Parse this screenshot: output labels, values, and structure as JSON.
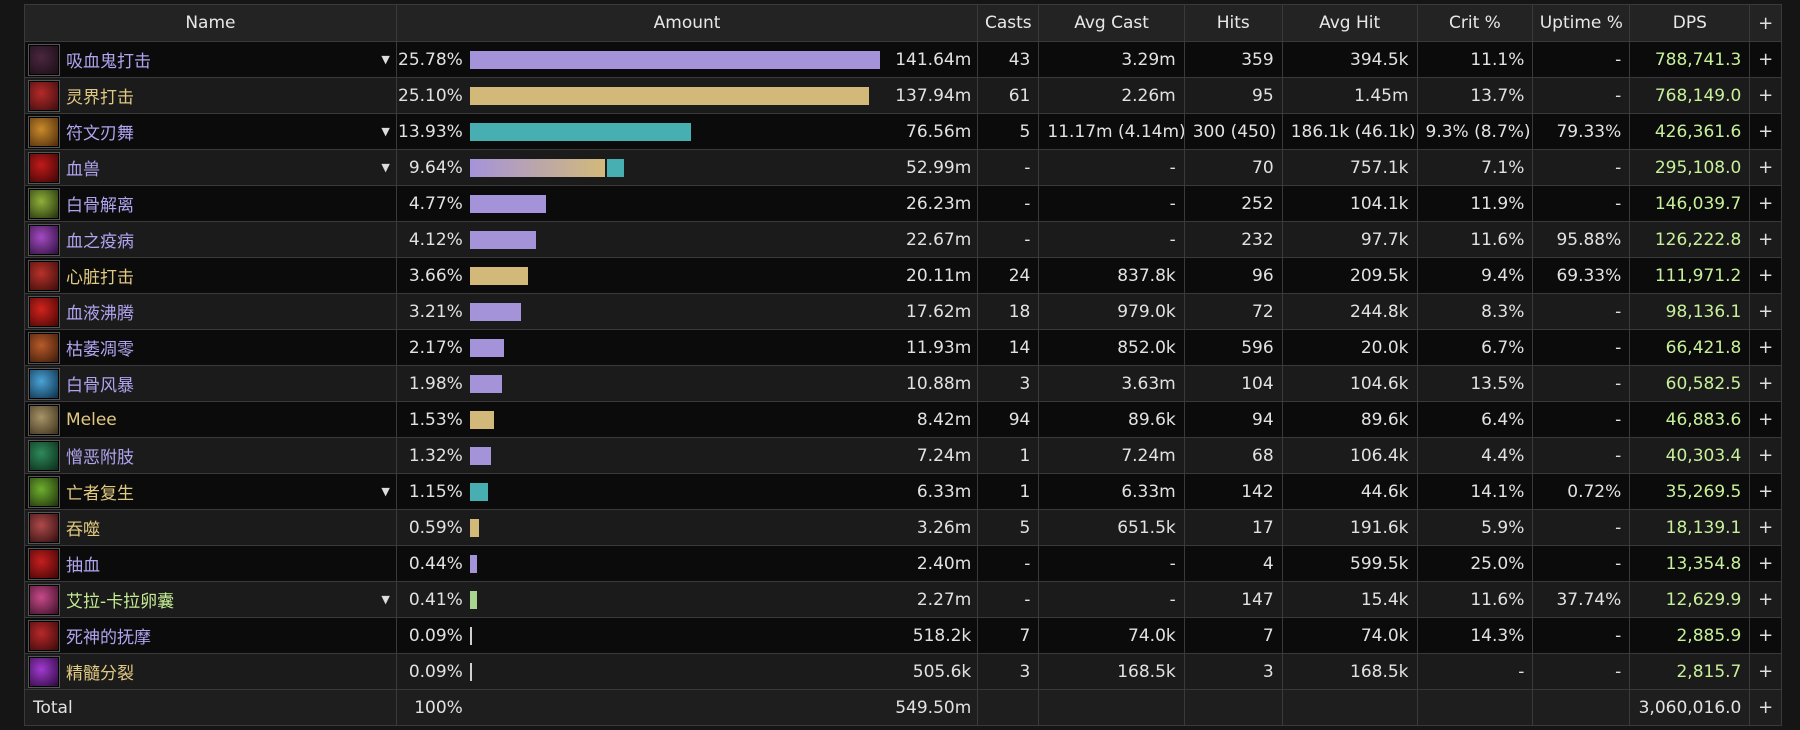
{
  "colors": {
    "purple": "#a593da",
    "gold": "#d2b97a",
    "teal": "#47aeb1",
    "green": "#a9d48f",
    "name_purple": "#b0a4ef",
    "name_gold": "#e1c982",
    "name_green": "#c5ec93",
    "dps_green": "#c7f09a"
  },
  "headers": {
    "name": "Name",
    "amount": "Amount",
    "casts": "Casts",
    "avg_cast": "Avg Cast",
    "hits": "Hits",
    "avg_hit": "Avg Hit",
    "crit": "Crit %",
    "uptime": "Uptime %",
    "dps": "DPS",
    "add": "+"
  },
  "rows": [
    {
      "name": "吸血鬼打击",
      "icon": "vampiric-strike-icon",
      "icon_colors": [
        "#4a2740",
        "#1a0d14"
      ],
      "name_color": "purple",
      "expandable": true,
      "pct": "25.78%",
      "bar": [
        {
          "color": "purple",
          "fraction": 1.0
        }
      ],
      "amount": "141.64m",
      "casts": "43",
      "avg_cast": "3.29m",
      "hits": "359",
      "avg_hit": "394.5k",
      "crit": "11.1%",
      "uptime": "-",
      "dps": "788,741.3"
    },
    {
      "name": "灵界打击",
      "icon": "death-strike-icon",
      "icon_colors": [
        "#b52a2a",
        "#3b0d0d"
      ],
      "name_color": "gold",
      "expandable": false,
      "pct": "25.10%",
      "bar": [
        {
          "color": "gold",
          "fraction": 0.974
        }
      ],
      "amount": "137.94m",
      "casts": "61",
      "avg_cast": "2.26m",
      "hits": "95",
      "avg_hit": "1.45m",
      "crit": "13.7%",
      "uptime": "-",
      "dps": "768,149.0"
    },
    {
      "name": "符文刃舞",
      "icon": "rune-blade-dance-icon",
      "icon_colors": [
        "#c98a2c",
        "#4a2a0a"
      ],
      "name_color": "purple",
      "expandable": true,
      "pct": "13.93%",
      "bar": [
        {
          "color": "teal",
          "fraction": 0.54
        }
      ],
      "amount": "76.56m",
      "casts": "5",
      "avg_cast": "11.17m (4.14m)",
      "hits": "300 (450)",
      "avg_hit": "186.1k (46.1k)",
      "crit": "9.3% (8.7%)",
      "uptime": "79.33%",
      "dps": "426,361.6"
    },
    {
      "name": "血兽",
      "icon": "bloodworm-icon",
      "icon_colors": [
        "#c21a1a",
        "#3a0606"
      ],
      "name_color": "purple",
      "expandable": true,
      "pct": "9.64%",
      "bar": [
        {
          "color": "gradient",
          "fraction": 0.33
        },
        {
          "color": "teal",
          "fraction": 0.041
        }
      ],
      "amount": "52.99m",
      "casts": "-",
      "avg_cast": "-",
      "hits": "70",
      "avg_hit": "757.1k",
      "crit": "7.1%",
      "uptime": "-",
      "dps": "295,108.0"
    },
    {
      "name": "白骨解离",
      "icon": "bone-dissolve-icon",
      "icon_colors": [
        "#8fb03a",
        "#1f2e0b"
      ],
      "name_color": "purple",
      "expandable": false,
      "pct": "4.77%",
      "bar": [
        {
          "color": "purple",
          "fraction": 0.185
        }
      ],
      "amount": "26.23m",
      "casts": "-",
      "avg_cast": "-",
      "hits": "252",
      "avg_hit": "104.1k",
      "crit": "11.9%",
      "uptime": "-",
      "dps": "146,039.7"
    },
    {
      "name": "血之疫病",
      "icon": "blood-plague-icon",
      "icon_colors": [
        "#a34bc2",
        "#2c0f3a"
      ],
      "name_color": "purple",
      "expandable": false,
      "pct": "4.12%",
      "bar": [
        {
          "color": "purple",
          "fraction": 0.16
        }
      ],
      "amount": "22.67m",
      "casts": "-",
      "avg_cast": "-",
      "hits": "232",
      "avg_hit": "97.7k",
      "crit": "11.6%",
      "uptime": "95.88%",
      "dps": "126,222.8"
    },
    {
      "name": "心脏打击",
      "icon": "heart-strike-icon",
      "icon_colors": [
        "#b8322a",
        "#3a0c0a"
      ],
      "name_color": "gold",
      "expandable": false,
      "pct": "3.66%",
      "bar": [
        {
          "color": "gold",
          "fraction": 0.142
        }
      ],
      "amount": "20.11m",
      "casts": "24",
      "avg_cast": "837.8k",
      "hits": "96",
      "avg_hit": "209.5k",
      "crit": "9.4%",
      "uptime": "69.33%",
      "dps": "111,971.2"
    },
    {
      "name": "血液沸腾",
      "icon": "blood-boil-icon",
      "icon_colors": [
        "#d3231c",
        "#420606"
      ],
      "name_color": "purple",
      "expandable": false,
      "pct": "3.21%",
      "bar": [
        {
          "color": "purple",
          "fraction": 0.125
        }
      ],
      "amount": "17.62m",
      "casts": "18",
      "avg_cast": "979.0k",
      "hits": "72",
      "avg_hit": "244.8k",
      "crit": "8.3%",
      "uptime": "-",
      "dps": "98,136.1"
    },
    {
      "name": "枯萎凋零",
      "icon": "death-and-decay-icon",
      "icon_colors": [
        "#b85a2a",
        "#3a1a0a"
      ],
      "name_color": "purple",
      "expandable": false,
      "pct": "2.17%",
      "bar": [
        {
          "color": "purple",
          "fraction": 0.084
        }
      ],
      "amount": "11.93m",
      "casts": "14",
      "avg_cast": "852.0k",
      "hits": "596",
      "avg_hit": "20.0k",
      "crit": "6.7%",
      "uptime": "-",
      "dps": "66,421.8"
    },
    {
      "name": "白骨风暴",
      "icon": "bonestorm-icon",
      "icon_colors": [
        "#4aa3d6",
        "#0d2c44"
      ],
      "name_color": "purple",
      "expandable": false,
      "pct": "1.98%",
      "bar": [
        {
          "color": "purple",
          "fraction": 0.077
        }
      ],
      "amount": "10.88m",
      "casts": "3",
      "avg_cast": "3.63m",
      "hits": "104",
      "avg_hit": "104.6k",
      "crit": "13.5%",
      "uptime": "-",
      "dps": "60,582.5"
    },
    {
      "name": "Melee",
      "icon": "melee-icon",
      "icon_colors": [
        "#a89468",
        "#3a2f1a"
      ],
      "name_color": "gold",
      "expandable": false,
      "pct": "1.53%",
      "bar": [
        {
          "color": "gold",
          "fraction": 0.059
        }
      ],
      "amount": "8.42m",
      "casts": "94",
      "avg_cast": "89.6k",
      "hits": "94",
      "avg_hit": "89.6k",
      "crit": "6.4%",
      "uptime": "-",
      "dps": "46,883.6"
    },
    {
      "name": "憎恶附肢",
      "icon": "abomination-limb-icon",
      "icon_colors": [
        "#2f8a5a",
        "#0a2a1a"
      ],
      "name_color": "purple",
      "expandable": false,
      "pct": "1.32%",
      "bar": [
        {
          "color": "purple",
          "fraction": 0.051
        }
      ],
      "amount": "7.24m",
      "casts": "1",
      "avg_cast": "7.24m",
      "hits": "68",
      "avg_hit": "106.4k",
      "crit": "4.4%",
      "uptime": "-",
      "dps": "40,303.4"
    },
    {
      "name": "亡者复生",
      "icon": "raise-dead-icon",
      "icon_colors": [
        "#6fae2f",
        "#1c300a"
      ],
      "name_color": "gold",
      "expandable": true,
      "pct": "1.15%",
      "bar": [
        {
          "color": "teal",
          "fraction": 0.045
        }
      ],
      "amount": "6.33m",
      "casts": "1",
      "avg_cast": "6.33m",
      "hits": "142",
      "avg_hit": "44.6k",
      "crit": "14.1%",
      "uptime": "0.72%",
      "dps": "35,269.5"
    },
    {
      "name": "吞噬",
      "icon": "consumption-icon",
      "icon_colors": [
        "#b04a4a",
        "#2e0e0e"
      ],
      "name_color": "gold",
      "expandable": false,
      "pct": "0.59%",
      "bar": [
        {
          "color": "gold",
          "fraction": 0.023
        }
      ],
      "amount": "3.26m",
      "casts": "5",
      "avg_cast": "651.5k",
      "hits": "17",
      "avg_hit": "191.6k",
      "crit": "5.9%",
      "uptime": "-",
      "dps": "18,139.1"
    },
    {
      "name": "抽血",
      "icon": "blood-draw-icon",
      "icon_colors": [
        "#c61f1f",
        "#3d0505"
      ],
      "name_color": "purple",
      "expandable": false,
      "pct": "0.44%",
      "bar": [
        {
          "color": "purple",
          "fraction": 0.017
        }
      ],
      "amount": "2.40m",
      "casts": "-",
      "avg_cast": "-",
      "hits": "4",
      "avg_hit": "599.5k",
      "crit": "25.0%",
      "uptime": "-",
      "dps": "13,354.8"
    },
    {
      "name": "艾拉-卡拉卵囊",
      "icon": "ara-kara-sacbrood-icon",
      "icon_colors": [
        "#c84a8a",
        "#3a0f26"
      ],
      "name_color": "green",
      "expandable": true,
      "pct": "0.41%",
      "bar": [
        {
          "color": "green",
          "fraction": 0.016
        }
      ],
      "amount": "2.27m",
      "casts": "-",
      "avg_cast": "-",
      "hits": "147",
      "avg_hit": "15.4k",
      "crit": "11.6%",
      "uptime": "37.74%",
      "dps": "12,629.9"
    },
    {
      "name": "死神的抚摩",
      "icon": "deaths-caress-icon",
      "icon_colors": [
        "#b8282a",
        "#380a0a"
      ],
      "name_color": "purple",
      "expandable": false,
      "pct": "0.09%",
      "bar": [
        {
          "color": "purple",
          "fraction": 0.004
        }
      ],
      "amount": "518.2k",
      "casts": "7",
      "avg_cast": "74.0k",
      "hits": "7",
      "avg_hit": "74.0k",
      "crit": "14.3%",
      "uptime": "-",
      "dps": "2,885.9"
    },
    {
      "name": "精髓分裂",
      "icon": "marrowrend-icon",
      "icon_colors": [
        "#a23ad0",
        "#2a0a3a"
      ],
      "name_color": "gold",
      "expandable": false,
      "pct": "0.09%",
      "bar": [
        {
          "color": "purple",
          "fraction": 0.004
        }
      ],
      "amount": "505.6k",
      "casts": "3",
      "avg_cast": "168.5k",
      "hits": "3",
      "avg_hit": "168.5k",
      "crit": "-",
      "uptime": "-",
      "dps": "2,815.7"
    }
  ],
  "total": {
    "label": "Total",
    "pct": "100%",
    "amount": "549.50m",
    "dps": "3,060,016.0"
  }
}
